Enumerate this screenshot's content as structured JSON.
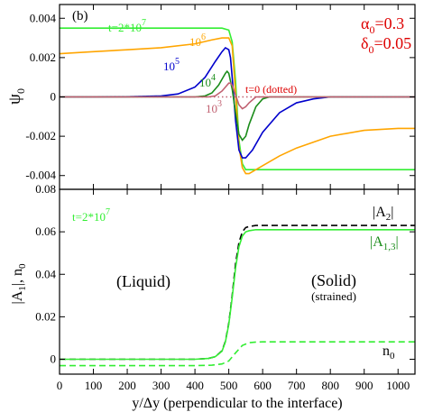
{
  "colors": {
    "green_light": "#33ee33",
    "green_dark": "#1a8c1a",
    "orange": "#ffa500",
    "blue": "#0000cc",
    "pink": "#c06070",
    "red": "#dd0000",
    "black": "#000000"
  },
  "chart_data": [
    {
      "type": "line",
      "panel_label": "(b)",
      "xlim": [
        0,
        1050
      ],
      "ylim": [
        -0.0047,
        0.0047
      ],
      "xticks": [
        0,
        100,
        200,
        300,
        400,
        500,
        600,
        700,
        800,
        900,
        1000
      ],
      "yticks": [
        -0.004,
        -0.002,
        0,
        0.002,
        0.004
      ],
      "ytick_labels": [
        "-0.004",
        "-0.002",
        "0",
        "0.002",
        "0.004"
      ],
      "ylabel_base": "ψ",
      "ylabel_sub": "0",
      "params": {
        "alpha_base": "α",
        "alpha_sub": "0",
        "alpha_val": "=0.3",
        "delta_base": "δ",
        "delta_sub": "0",
        "delta_val": "=0.05"
      },
      "series": [
        {
          "label_base": "t=2*10",
          "label_sup": "7",
          "color": "#33ee33",
          "style": "solid",
          "x": [
            0,
            480,
            500,
            510,
            520,
            530,
            540,
            550,
            600,
            700,
            800,
            900,
            1050
          ],
          "y": [
            0.0035,
            0.0035,
            0.0034,
            0.0028,
            0.0008,
            -0.0022,
            -0.0034,
            -0.0037,
            -0.0037,
            -0.0037,
            -0.0037,
            -0.0037,
            -0.0037
          ]
        },
        {
          "label_base": "10",
          "label_sup": "6",
          "color": "#ffa500",
          "style": "solid",
          "x": [
            0,
            100,
            200,
            300,
            400,
            450,
            480,
            500,
            510,
            520,
            530,
            540,
            550,
            560,
            600,
            650,
            700,
            800,
            900,
            1000,
            1050
          ],
          "y": [
            0.0022,
            0.0023,
            0.0024,
            0.0025,
            0.0027,
            0.0029,
            0.003,
            0.003,
            0.0026,
            0.0002,
            -0.0025,
            -0.0036,
            -0.0039,
            -0.0039,
            -0.0035,
            -0.003,
            -0.0026,
            -0.002,
            -0.0017,
            -0.0016,
            -0.0016
          ]
        },
        {
          "label_base": "10",
          "label_sup": "5",
          "color": "#0000cc",
          "style": "solid",
          "x": [
            0,
            100,
            200,
            300,
            350,
            400,
            430,
            460,
            480,
            490,
            500,
            505,
            510,
            520,
            530,
            540,
            550,
            570,
            600,
            650,
            700,
            750,
            800,
            1050
          ],
          "y": [
            0,
            0,
            1e-05,
            5e-05,
            0.00015,
            0.0005,
            0.001,
            0.0018,
            0.0023,
            0.0025,
            0.0024,
            0.002,
            0.001,
            -0.0012,
            -0.0027,
            -0.0031,
            -0.0031,
            -0.0027,
            -0.0018,
            -0.0008,
            -0.0003,
            -0.0001,
            0,
            0
          ]
        },
        {
          "label_base": "10",
          "label_sup": "4",
          "color": "#1a8c1a",
          "style": "solid",
          "x": [
            0,
            400,
            430,
            450,
            470,
            480,
            490,
            495,
            500,
            510,
            520,
            530,
            540,
            550,
            560,
            580,
            600,
            620,
            650,
            1050
          ],
          "y": [
            0,
            0,
            5e-05,
            0.0002,
            0.0006,
            0.0009,
            0.0012,
            0.0013,
            0.0012,
            0.0004,
            -0.0008,
            -0.0019,
            -0.0022,
            -0.002,
            -0.0014,
            -0.0005,
            -0.0001,
            0,
            0,
            0
          ]
        },
        {
          "label_base": "10",
          "label_sup": "3",
          "color": "#c06070",
          "style": "solid",
          "x": [
            0,
            440,
            460,
            480,
            490,
            500,
            505,
            510,
            520,
            530,
            540,
            550,
            560,
            580,
            1050
          ],
          "y": [
            0,
            0,
            5e-05,
            0.0003,
            0.0005,
            0.0007,
            0.0007,
            0.0006,
            0.0001,
            -0.0004,
            -0.0006,
            -0.0005,
            -0.0003,
            0,
            0
          ]
        },
        {
          "label_base": "t=0 (dotted)",
          "label_sup": "",
          "color": "#c06070",
          "style": "dotted",
          "x": [
            0,
            1050
          ],
          "y": [
            0,
            0
          ]
        }
      ]
    },
    {
      "type": "line",
      "xlim": [
        0,
        1050
      ],
      "ylim": [
        -0.007,
        0.08
      ],
      "xticks": [
        0,
        100,
        200,
        300,
        400,
        500,
        600,
        700,
        800,
        900,
        1000
      ],
      "yticks": [
        0,
        0.02,
        0.04,
        0.06,
        0.08
      ],
      "ytick_labels": [
        "0",
        "0.02",
        "0.04",
        "0.06",
        "0.08"
      ],
      "xlabel": "y/Δy (perpendicular to the interface)",
      "ylabel_a": "|A",
      "ylabel_a_sub": "1",
      "ylabel_b": "|, n",
      "ylabel_b_sub": "0",
      "time_label_base": "t=2*10",
      "time_label_sup": "7",
      "region_liquid": "(Liquid)",
      "region_solid": "(Solid)",
      "region_solid_note": "(strained)",
      "series": [
        {
          "label_base": "|A",
          "label_sub": "2",
          "label_tail": "|",
          "color": "#000000",
          "style": "dashed",
          "x": [
            0,
            400,
            440,
            460,
            480,
            490,
            500,
            510,
            520,
            530,
            540,
            550,
            560,
            580,
            600,
            800,
            1050
          ],
          "y": [
            0,
            0,
            0.0004,
            0.0012,
            0.004,
            0.0085,
            0.017,
            0.03,
            0.045,
            0.055,
            0.06,
            0.062,
            0.0625,
            0.063,
            0.063,
            0.063,
            0.063
          ]
        },
        {
          "label_base": "|A",
          "label_sub": "1,3",
          "label_tail": "|",
          "color": "#33ee33",
          "style": "solid",
          "x": [
            0,
            400,
            440,
            460,
            480,
            490,
            500,
            510,
            520,
            530,
            540,
            550,
            560,
            580,
            600,
            800,
            1050
          ],
          "y": [
            0,
            0,
            0.0004,
            0.0012,
            0.0038,
            0.0082,
            0.0165,
            0.029,
            0.043,
            0.053,
            0.058,
            0.06,
            0.0605,
            0.061,
            0.061,
            0.061,
            0.061
          ]
        },
        {
          "label_base": "n",
          "label_sub": "0",
          "label_tail": "",
          "color": "#33ee33",
          "style": "dashed",
          "x": [
            0,
            400,
            450,
            480,
            500,
            520,
            540,
            560,
            580,
            600,
            800,
            1050
          ],
          "y": [
            -0.003,
            -0.003,
            -0.0028,
            -0.0022,
            -0.0008,
            0.003,
            0.0065,
            0.0078,
            0.0081,
            0.0082,
            0.0082,
            0.0082
          ]
        }
      ]
    }
  ]
}
